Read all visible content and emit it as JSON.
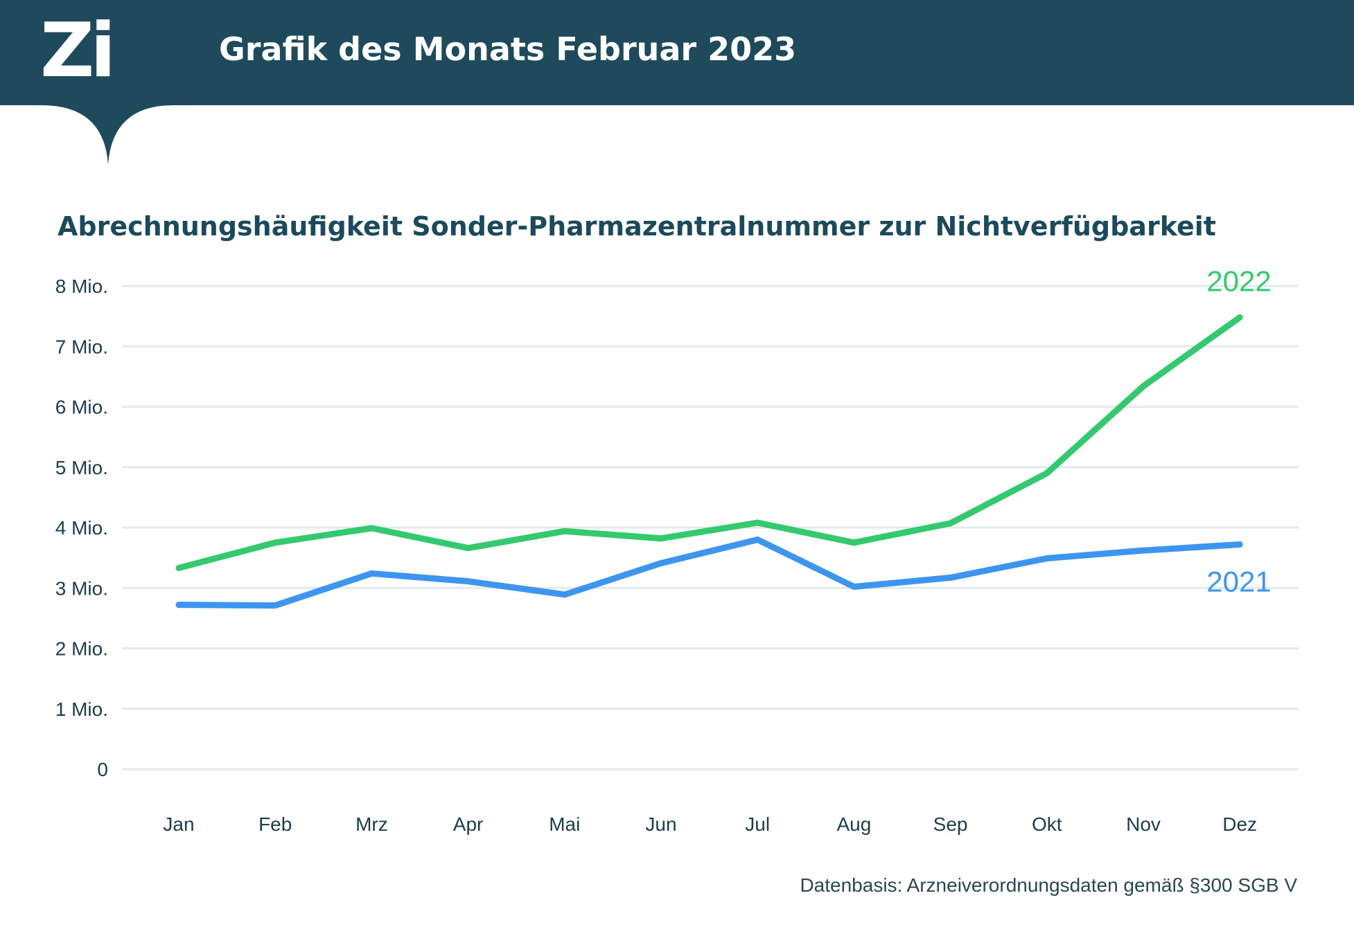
{
  "header": {
    "logo_text": "Zi",
    "title": "Grafik des Monats Februar 2023"
  },
  "colors": {
    "header_bg": "#1e4a5c",
    "grid": "#e3eaed",
    "tick_text": "#1c3c4c",
    "series_2022": "#34c96e",
    "series_2021": "#3d95f0"
  },
  "footer": {
    "source": "Datenbasis: Arzneiverordnungsdaten gemäß §300 SGB V"
  },
  "chart_data": {
    "type": "line",
    "title": "Abrechnungshäufigkeit Sonder-Pharmazentralnummer zur Nichtverfügbarkeit",
    "xlabel": "",
    "ylabel": "",
    "grid": true,
    "ylim": [
      0,
      8000000
    ],
    "y_ticks": [
      {
        "value": 0,
        "label": "0"
      },
      {
        "value": 1000000,
        "label": "1 Mio."
      },
      {
        "value": 2000000,
        "label": "2 Mio."
      },
      {
        "value": 3000000,
        "label": "3 Mio."
      },
      {
        "value": 4000000,
        "label": "4 Mio."
      },
      {
        "value": 5000000,
        "label": "5 Mio."
      },
      {
        "value": 6000000,
        "label": "6 Mio."
      },
      {
        "value": 7000000,
        "label": "7 Mio."
      },
      {
        "value": 8000000,
        "label": "8 Mio."
      }
    ],
    "categories": [
      "Jan",
      "Feb",
      "Mrz",
      "Apr",
      "Mai",
      "Jun",
      "Jul",
      "Aug",
      "Sep",
      "Okt",
      "Nov",
      "Dez"
    ],
    "series": [
      {
        "name": "2022",
        "color": "#34c96e",
        "values": [
          3330000,
          3750000,
          3990000,
          3660000,
          3940000,
          3820000,
          4080000,
          3750000,
          4070000,
          4900000,
          6340000,
          7480000
        ]
      },
      {
        "name": "2021",
        "color": "#3d95f0",
        "values": [
          2720000,
          2710000,
          3240000,
          3110000,
          2890000,
          3410000,
          3800000,
          3020000,
          3170000,
          3490000,
          3620000,
          3720000
        ]
      }
    ]
  }
}
